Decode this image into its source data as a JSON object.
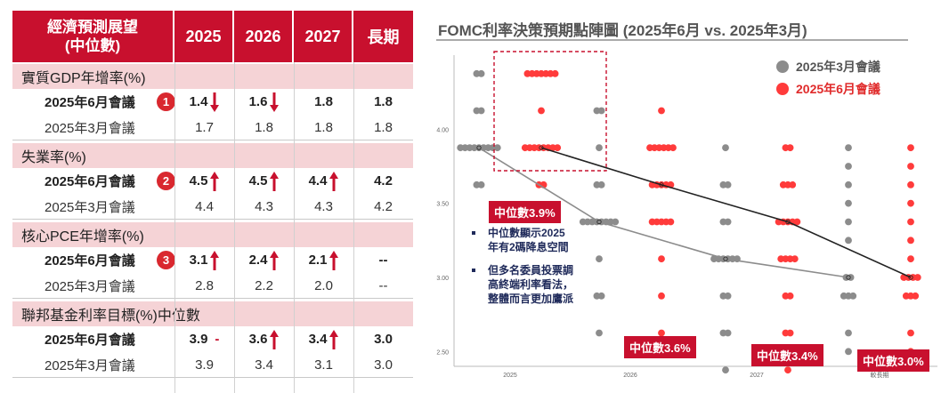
{
  "table": {
    "header": {
      "label_line1": "經濟預測展望",
      "label_line2": "(中位數)",
      "cols": [
        "2025",
        "2026",
        "2027",
        "長期"
      ]
    },
    "sections": [
      {
        "title": "實質GDP年增率(%)",
        "badge": "1",
        "rows": [
          {
            "label": "2025年6月會議",
            "values": [
              "1.4",
              "1.6",
              "1.8",
              "1.8"
            ],
            "trend": [
              "down",
              "down",
              "",
              ""
            ]
          },
          {
            "label": "2025年3月會議",
            "values": [
              "1.7",
              "1.8",
              "1.8",
              "1.8"
            ],
            "trend": [
              "",
              "",
              "",
              ""
            ]
          }
        ]
      },
      {
        "title": "失業率(%)",
        "badge": "2",
        "rows": [
          {
            "label": "2025年6月會議",
            "values": [
              "4.5",
              "4.5",
              "4.4",
              "4.2"
            ],
            "trend": [
              "up",
              "up",
              "up",
              ""
            ]
          },
          {
            "label": "2025年3月會議",
            "values": [
              "4.4",
              "4.3",
              "4.3",
              "4.2"
            ],
            "trend": [
              "",
              "",
              "",
              ""
            ]
          }
        ]
      },
      {
        "title": "核心PCE年增率(%)",
        "badge": "3",
        "rows": [
          {
            "label": "2025年6月會議",
            "values": [
              "3.1",
              "2.4",
              "2.1",
              "--"
            ],
            "trend": [
              "up",
              "up",
              "up",
              ""
            ]
          },
          {
            "label": "2025年3月會議",
            "values": [
              "2.8",
              "2.2",
              "2.0",
              "--"
            ],
            "trend": [
              "",
              "",
              "",
              ""
            ]
          }
        ]
      },
      {
        "title": "聯邦基金利率目標(%)中位數",
        "badge": "",
        "rows": [
          {
            "label": "2025年6月會議",
            "values": [
              "3.9",
              "3.6",
              "3.4",
              "3.0"
            ],
            "trend": [
              "dash",
              "up",
              "up",
              ""
            ]
          },
          {
            "label": "2025年3月會議",
            "values": [
              "3.9",
              "3.4",
              "3.1",
              "3.0"
            ],
            "trend": [
              "",
              "",
              "",
              ""
            ]
          }
        ]
      }
    ]
  },
  "colors": {
    "accent": "#c8102e",
    "march": "#8c8c8c",
    "june": "#ff3b3b",
    "section_bg": "#f5d3d6"
  },
  "chart_data": {
    "type": "scatter",
    "title": "FOMC利率決策預期點陣圖 (2025年6月 vs. 2025年3月)",
    "categories": [
      "2025",
      "2026",
      "2027",
      "較長期"
    ],
    "ylim": [
      2.4,
      4.5
    ],
    "yticks": [
      "4.00",
      "3.50",
      "3.00",
      "2.50"
    ],
    "legend": [
      "2025年3月會議",
      "2025年6月會議"
    ],
    "series": [
      {
        "name": "2025年3月會議",
        "dots": [
          {
            "x": 0,
            "y": 4.375,
            "n": 2
          },
          {
            "x": 0,
            "y": 4.125,
            "n": 2
          },
          {
            "x": 0,
            "y": 3.875,
            "n": 9
          },
          {
            "x": 0,
            "y": 3.625,
            "n": 2
          },
          {
            "x": 1,
            "y": 4.125,
            "n": 2
          },
          {
            "x": 1,
            "y": 3.875,
            "n": 1
          },
          {
            "x": 1,
            "y": 3.625,
            "n": 2
          },
          {
            "x": 1,
            "y": 3.375,
            "n": 8
          },
          {
            "x": 1,
            "y": 3.125,
            "n": 1
          },
          {
            "x": 1,
            "y": 2.875,
            "n": 2
          },
          {
            "x": 1,
            "y": 2.625,
            "n": 1
          },
          {
            "x": 2,
            "y": 3.875,
            "n": 1
          },
          {
            "x": 2,
            "y": 3.625,
            "n": 2
          },
          {
            "x": 2,
            "y": 3.375,
            "n": 2
          },
          {
            "x": 2,
            "y": 3.125,
            "n": 6
          },
          {
            "x": 2,
            "y": 2.875,
            "n": 2
          },
          {
            "x": 2,
            "y": 2.625,
            "n": 2
          },
          {
            "x": 2,
            "y": 2.375,
            "n": 1
          },
          {
            "x": 3,
            "y": 3.875,
            "n": 1
          },
          {
            "x": 3,
            "y": 3.75,
            "n": 1
          },
          {
            "x": 3,
            "y": 3.625,
            "n": 1
          },
          {
            "x": 3,
            "y": 3.5,
            "n": 1
          },
          {
            "x": 3,
            "y": 3.375,
            "n": 1
          },
          {
            "x": 3,
            "y": 3.25,
            "n": 1
          },
          {
            "x": 3,
            "y": 3.0,
            "n": 2
          },
          {
            "x": 3,
            "y": 2.875,
            "n": 3
          },
          {
            "x": 3,
            "y": 2.625,
            "n": 1
          },
          {
            "x": 3,
            "y": 2.5,
            "n": 1
          }
        ],
        "median": [
          3.875,
          3.375,
          3.125,
          3.0
        ]
      },
      {
        "name": "2025年6月會議",
        "dots": [
          {
            "x": 0,
            "y": 4.375,
            "n": 7
          },
          {
            "x": 0,
            "y": 4.125,
            "n": 1
          },
          {
            "x": 0,
            "y": 3.875,
            "n": 8
          },
          {
            "x": 0,
            "y": 3.625,
            "n": 2
          },
          {
            "x": 1,
            "y": 4.125,
            "n": 1
          },
          {
            "x": 1,
            "y": 3.875,
            "n": 6
          },
          {
            "x": 1,
            "y": 3.625,
            "n": 5
          },
          {
            "x": 1,
            "y": 3.375,
            "n": 5
          },
          {
            "x": 1,
            "y": 3.125,
            "n": 1
          },
          {
            "x": 1,
            "y": 2.875,
            "n": 1
          },
          {
            "x": 1,
            "y": 2.625,
            "n": 1
          },
          {
            "x": 2,
            "y": 3.875,
            "n": 2
          },
          {
            "x": 2,
            "y": 3.625,
            "n": 3
          },
          {
            "x": 2,
            "y": 3.375,
            "n": 5
          },
          {
            "x": 2,
            "y": 3.125,
            "n": 4
          },
          {
            "x": 2,
            "y": 2.875,
            "n": 2
          },
          {
            "x": 2,
            "y": 2.625,
            "n": 2
          },
          {
            "x": 2,
            "y": 2.375,
            "n": 1
          },
          {
            "x": 3,
            "y": 3.875,
            "n": 1
          },
          {
            "x": 3,
            "y": 3.75,
            "n": 1
          },
          {
            "x": 3,
            "y": 3.625,
            "n": 1
          },
          {
            "x": 3,
            "y": 3.5,
            "n": 1
          },
          {
            "x": 3,
            "y": 3.375,
            "n": 1
          },
          {
            "x": 3,
            "y": 3.25,
            "n": 1
          },
          {
            "x": 3,
            "y": 3.125,
            "n": 1
          },
          {
            "x": 3,
            "y": 3.0,
            "n": 4
          },
          {
            "x": 3,
            "y": 2.875,
            "n": 3
          },
          {
            "x": 3,
            "y": 2.625,
            "n": 1
          },
          {
            "x": 3,
            "y": 2.5,
            "n": 1
          }
        ],
        "median": [
          3.875,
          3.625,
          3.375,
          3.0
        ]
      }
    ],
    "annotations": {
      "median_2025": "中位數3.9%",
      "median_2026": "中位數3.6%",
      "median_2027": "中位數3.4%",
      "median_longrun": "中位數3.0%",
      "note1": [
        "中位數顯示2025",
        "年有2碼降息空間"
      ],
      "note2": [
        "但多名委員投票調",
        "高終端利率看法，",
        "整體而言更加鷹派"
      ]
    }
  }
}
